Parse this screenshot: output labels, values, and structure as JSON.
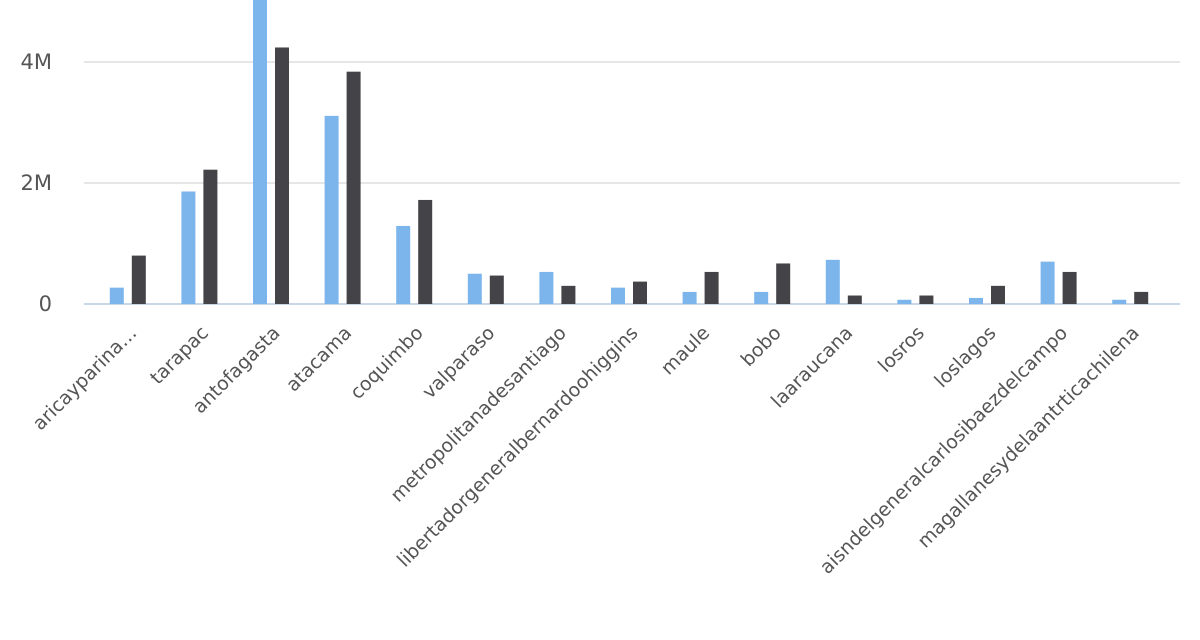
{
  "chart_data": {
    "type": "bar",
    "title": "",
    "xlabel": "",
    "ylabel": "",
    "ylim": [
      0,
      5000000
    ],
    "yticks": [
      {
        "value": 0,
        "label": "0"
      },
      {
        "value": 2000000,
        "label": "2M"
      },
      {
        "value": 4000000,
        "label": "4M"
      }
    ],
    "grid": true,
    "legend": "none",
    "categories": [
      "aricayparina…",
      "tarapac",
      "antofagasta",
      "atacama",
      "coquimbo",
      "valparaso",
      "metropolitanadesantiago",
      "libertadorgeneralbernardoohiggins",
      "maule",
      "bobo",
      "laaraucana",
      "losros",
      "loslagos",
      "aisndelgeneralcarlosibaezdelcampo",
      "magallanesydelaantrticachilena"
    ],
    "series": [
      {
        "color": "#7cb5ec",
        "values": [
          270000,
          1860000,
          5050000,
          3110000,
          1290000,
          500000,
          530000,
          270000,
          200000,
          200000,
          730000,
          70000,
          100000,
          700000,
          70000
        ]
      },
      {
        "color": "#434348",
        "values": [
          800000,
          2220000,
          4240000,
          3840000,
          1720000,
          470000,
          300000,
          370000,
          530000,
          670000,
          140000,
          140000,
          300000,
          530000,
          200000
        ]
      }
    ]
  }
}
